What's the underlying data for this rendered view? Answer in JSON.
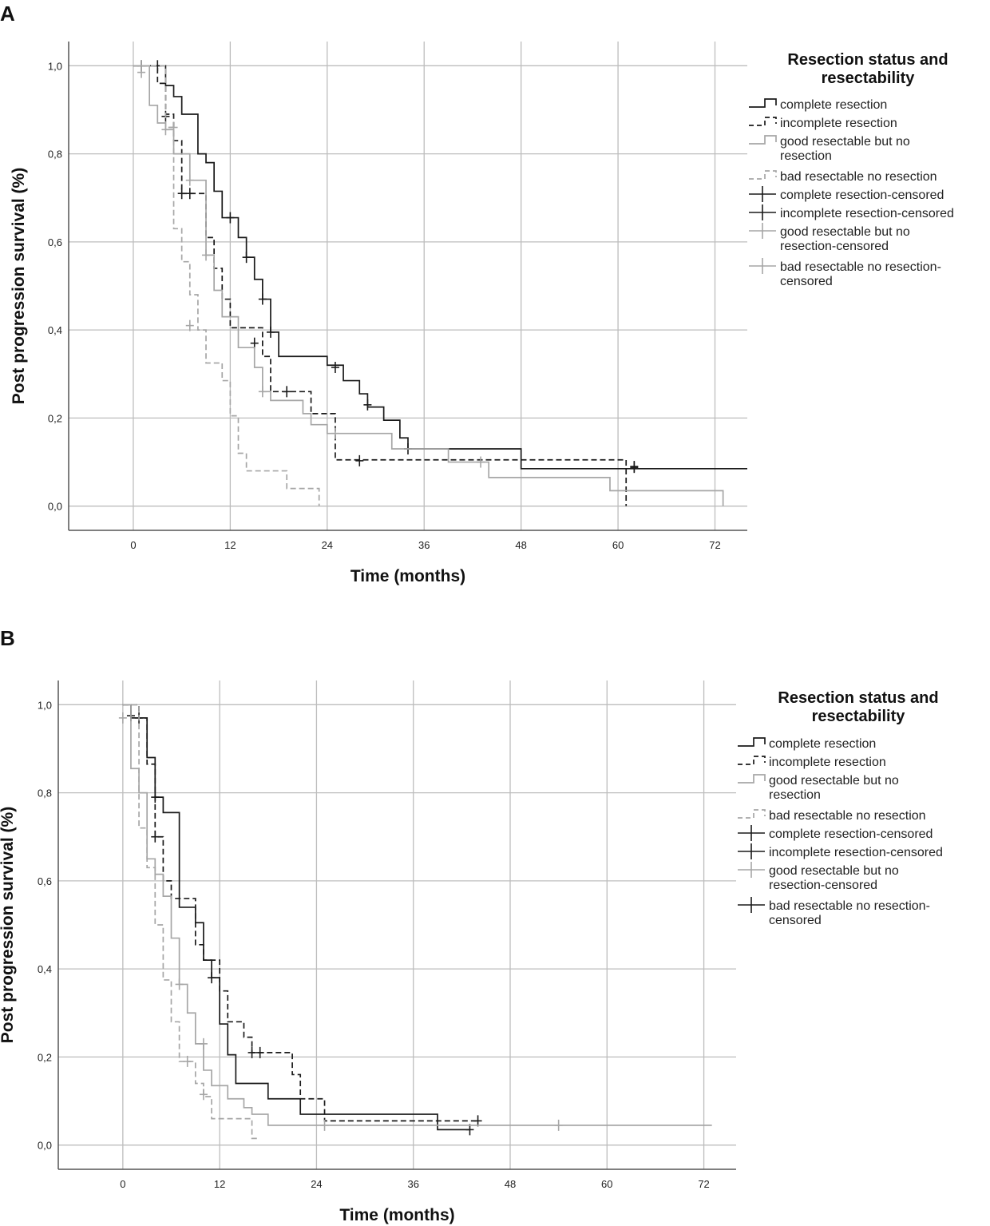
{
  "figure": {
    "colors": {
      "dark": "#1a1a1a",
      "light": "#a6a6a6",
      "grid": "#bdbdbd",
      "axis": "#555555"
    }
  },
  "chart_data": [
    {
      "type": "line",
      "subtype": "kaplan-meier",
      "panel_label": "A",
      "xlabel": "Time (months)",
      "ylabel": "Post progression survival (%)",
      "xlim": [
        -8,
        76
      ],
      "ylim": [
        -0.055,
        1.055
      ],
      "x_ticks": [
        0,
        12,
        24,
        36,
        48,
        60,
        72
      ],
      "x_tick_labels": [
        "0",
        "12",
        "24",
        "36",
        "48",
        "60",
        "72"
      ],
      "y_ticks": [
        0,
        0.2,
        0.4,
        0.6,
        0.8,
        1.0
      ],
      "y_tick_labels": [
        "0,0",
        "0,2",
        "0,4",
        "0,6",
        "0,8",
        "1,0"
      ],
      "grid": true,
      "legend": {
        "title_lines": [
          "Resection status and",
          "resectability"
        ],
        "position": "right",
        "entries": [
          {
            "lines": [
              "complete resection"
            ],
            "glyph": "step",
            "color": "dark",
            "dash": "solid"
          },
          {
            "lines": [
              "incomplete resection"
            ],
            "glyph": "step",
            "color": "dark",
            "dash": "dashed"
          },
          {
            "lines": [
              "good resectable but no",
              "resection"
            ],
            "glyph": "step",
            "color": "light",
            "dash": "solid"
          },
          {
            "lines": [
              "bad resectable no resection"
            ],
            "glyph": "step",
            "color": "light",
            "dash": "dashed"
          },
          {
            "lines": [
              "complete resection-censored"
            ],
            "glyph": "cross",
            "color": "dark"
          },
          {
            "lines": [
              "incomplete resection-censored"
            ],
            "glyph": "cross",
            "color": "dark"
          },
          {
            "lines": [
              "good resectable but no",
              "resection-censored"
            ],
            "glyph": "cross",
            "color": "light"
          },
          {
            "lines": [
              "bad resectable no resection-",
              "censored"
            ],
            "glyph": "cross",
            "color": "light"
          }
        ]
      },
      "series": [
        {
          "name": "complete resection",
          "color": "dark",
          "dash": "solid",
          "steps": [
            [
              0,
              1.0
            ],
            [
              4,
              0.955
            ],
            [
              5,
              0.93
            ],
            [
              6,
              0.89
            ],
            [
              8,
              0.8
            ],
            [
              9,
              0.78
            ],
            [
              10,
              0.715
            ],
            [
              11,
              0.655
            ],
            [
              13,
              0.61
            ],
            [
              14,
              0.565
            ],
            [
              15,
              0.515
            ],
            [
              16,
              0.47
            ],
            [
              17,
              0.395
            ],
            [
              18,
              0.34
            ],
            [
              24,
              0.32
            ],
            [
              26,
              0.285
            ],
            [
              28,
              0.255
            ],
            [
              29,
              0.225
            ],
            [
              31,
              0.195
            ],
            [
              33,
              0.155
            ],
            [
              34,
              0.13
            ],
            [
              48,
              0.085
            ],
            [
              76,
              0.085
            ]
          ],
          "censored": [
            [
              1,
              1.0
            ],
            [
              3,
              1.0
            ],
            [
              12,
              0.655
            ],
            [
              14,
              0.565
            ],
            [
              16,
              0.47
            ],
            [
              17,
              0.395
            ],
            [
              25,
              0.315
            ],
            [
              29,
              0.23
            ],
            [
              34,
              0.13
            ],
            [
              62,
              0.088
            ]
          ]
        },
        {
          "name": "incomplete resection",
          "color": "dark",
          "dash": "dashed",
          "steps": [
            [
              0,
              1.0
            ],
            [
              3,
              0.96
            ],
            [
              4,
              0.89
            ],
            [
              5,
              0.83
            ],
            [
              6,
              0.71
            ],
            [
              7,
              0.71
            ],
            [
              9,
              0.61
            ],
            [
              10,
              0.54
            ],
            [
              11,
              0.47
            ],
            [
              12,
              0.405
            ],
            [
              16,
              0.34
            ],
            [
              17,
              0.26
            ],
            [
              22,
              0.21
            ],
            [
              25,
              0.105
            ],
            [
              61,
              0.0
            ]
          ],
          "censored": [
            [
              4,
              0.885
            ],
            [
              6,
              0.71
            ],
            [
              7,
              0.71
            ],
            [
              15,
              0.37
            ],
            [
              19,
              0.26
            ],
            [
              28,
              0.103
            ],
            [
              62,
              0.09
            ]
          ]
        },
        {
          "name": "good resectable but no resection",
          "color": "light",
          "dash": "solid",
          "steps": [
            [
              0,
              1.0
            ],
            [
              2,
              0.91
            ],
            [
              3,
              0.87
            ],
            [
              4,
              0.855
            ],
            [
              5,
              0.8
            ],
            [
              7,
              0.74
            ],
            [
              9,
              0.57
            ],
            [
              10,
              0.49
            ],
            [
              11,
              0.43
            ],
            [
              13,
              0.36
            ],
            [
              15,
              0.315
            ],
            [
              16,
              0.26
            ],
            [
              17,
              0.24
            ],
            [
              21,
              0.21
            ],
            [
              22,
              0.185
            ],
            [
              24,
              0.165
            ],
            [
              32,
              0.13
            ],
            [
              39,
              0.1
            ],
            [
              44,
              0.065
            ],
            [
              59,
              0.035
            ],
            [
              73,
              0.0
            ]
          ],
          "censored": [
            [
              1,
              0.985
            ],
            [
              4,
              0.855
            ],
            [
              7,
              0.74
            ],
            [
              9,
              0.57
            ],
            [
              16,
              0.26
            ],
            [
              25,
              0.165
            ],
            [
              43,
              0.1
            ]
          ]
        },
        {
          "name": "bad resectable no resection",
          "color": "light",
          "dash": "dashed",
          "steps": [
            [
              0,
              1.0
            ],
            [
              4,
              0.86
            ],
            [
              5,
              0.63
            ],
            [
              6,
              0.555
            ],
            [
              7,
              0.48
            ],
            [
              8,
              0.4
            ],
            [
              9,
              0.325
            ],
            [
              11,
              0.285
            ],
            [
              12,
              0.205
            ],
            [
              13,
              0.12
            ],
            [
              14,
              0.08
            ],
            [
              19,
              0.04
            ],
            [
              23,
              0.0
            ]
          ],
          "censored": [
            [
              1,
              1.0
            ],
            [
              5,
              0.86
            ],
            [
              7,
              0.41
            ]
          ]
        }
      ]
    },
    {
      "type": "line",
      "subtype": "kaplan-meier",
      "panel_label": "B",
      "xlabel": "Time (months)",
      "ylabel": "Post progression survival (%)",
      "xlim": [
        -8,
        76
      ],
      "ylim": [
        -0.055,
        1.055
      ],
      "x_ticks": [
        0,
        12,
        24,
        36,
        48,
        60,
        72
      ],
      "x_tick_labels": [
        "0",
        "12",
        "24",
        "36",
        "48",
        "60",
        "72"
      ],
      "y_ticks": [
        0,
        0.2,
        0.4,
        0.6,
        0.8,
        1.0
      ],
      "y_tick_labels": [
        "0,0",
        "0,2",
        "0,4",
        "0,6",
        "0,8",
        "1,0"
      ],
      "grid": true,
      "legend": {
        "title_lines": [
          "Resection status and",
          "resectability"
        ],
        "position": "right",
        "entries": [
          {
            "lines": [
              "complete resection"
            ],
            "glyph": "step",
            "color": "dark",
            "dash": "solid"
          },
          {
            "lines": [
              "incomplete resection"
            ],
            "glyph": "step",
            "color": "dark",
            "dash": "dashed"
          },
          {
            "lines": [
              "good resectable but no",
              "resection"
            ],
            "glyph": "step",
            "color": "light",
            "dash": "solid"
          },
          {
            "lines": [
              "bad resectable no resection"
            ],
            "glyph": "step",
            "color": "light",
            "dash": "dashed"
          },
          {
            "lines": [
              "complete resection-censored"
            ],
            "glyph": "cross",
            "color": "dark"
          },
          {
            "lines": [
              "incomplete resection-censored"
            ],
            "glyph": "cross",
            "color": "dark"
          },
          {
            "lines": [
              "good resectable but no",
              "resection-censored"
            ],
            "glyph": "cross",
            "color": "light"
          },
          {
            "lines": [
              "bad resectable no resection-",
              "censored"
            ],
            "glyph": "cross",
            "color": "dark"
          }
        ]
      },
      "series": [
        {
          "name": "complete resection",
          "color": "dark",
          "dash": "solid",
          "steps": [
            [
              0,
              1.0
            ],
            [
              1,
              0.97
            ],
            [
              3,
              0.88
            ],
            [
              4,
              0.79
            ],
            [
              5,
              0.755
            ],
            [
              7,
              0.54
            ],
            [
              9,
              0.505
            ],
            [
              10,
              0.42
            ],
            [
              11,
              0.38
            ],
            [
              12,
              0.275
            ],
            [
              13,
              0.205
            ],
            [
              14,
              0.14
            ],
            [
              18,
              0.105
            ],
            [
              22,
              0.07
            ],
            [
              39,
              0.035
            ],
            [
              43,
              0.035
            ]
          ],
          "censored": [
            [
              1,
              0.975
            ],
            [
              2,
              0.97
            ],
            [
              4,
              0.79
            ],
            [
              11,
              0.38
            ],
            [
              43,
              0.035
            ]
          ]
        },
        {
          "name": "incomplete resection",
          "color": "dark",
          "dash": "dashed",
          "steps": [
            [
              0,
              1.0
            ],
            [
              2,
              0.97
            ],
            [
              3,
              0.865
            ],
            [
              4,
              0.7
            ],
            [
              5,
              0.6
            ],
            [
              6,
              0.56
            ],
            [
              9,
              0.455
            ],
            [
              10,
              0.42
            ],
            [
              12,
              0.35
            ],
            [
              13,
              0.28
            ],
            [
              15,
              0.245
            ],
            [
              16,
              0.21
            ],
            [
              21,
              0.16
            ],
            [
              22,
              0.105
            ],
            [
              25,
              0.055
            ],
            [
              44,
              0.055
            ]
          ],
          "censored": [
            [
              4,
              0.7
            ],
            [
              16,
              0.21
            ],
            [
              17,
              0.21
            ],
            [
              44,
              0.055
            ]
          ]
        },
        {
          "name": "good resectable but no resection",
          "color": "light",
          "dash": "solid",
          "steps": [
            [
              0,
              1.0
            ],
            [
              1,
              0.855
            ],
            [
              2,
              0.8
            ],
            [
              3,
              0.65
            ],
            [
              4,
              0.615
            ],
            [
              5,
              0.565
            ],
            [
              6,
              0.47
            ],
            [
              7,
              0.365
            ],
            [
              8,
              0.3
            ],
            [
              9,
              0.23
            ],
            [
              10,
              0.17
            ],
            [
              11,
              0.135
            ],
            [
              13,
              0.105
            ],
            [
              15,
              0.085
            ],
            [
              16,
              0.07
            ],
            [
              18,
              0.045
            ],
            [
              73,
              0.045
            ]
          ],
          "censored": [
            [
              0,
              0.97
            ],
            [
              7,
              0.365
            ],
            [
              10,
              0.23
            ],
            [
              25,
              0.045
            ],
            [
              54,
              0.045
            ]
          ]
        },
        {
          "name": "bad resectable no resection",
          "color": "light",
          "dash": "dashed",
          "steps": [
            [
              0,
              1.0
            ],
            [
              2,
              0.72
            ],
            [
              3,
              0.63
            ],
            [
              4,
              0.5
            ],
            [
              5,
              0.375
            ],
            [
              6,
              0.28
            ],
            [
              7,
              0.19
            ],
            [
              9,
              0.14
            ],
            [
              10,
              0.11
            ],
            [
              11,
              0.06
            ],
            [
              16,
              0.015
            ],
            [
              17,
              0.015
            ]
          ],
          "censored": [
            [
              8,
              0.19
            ],
            [
              10,
              0.115
            ]
          ]
        }
      ]
    }
  ]
}
